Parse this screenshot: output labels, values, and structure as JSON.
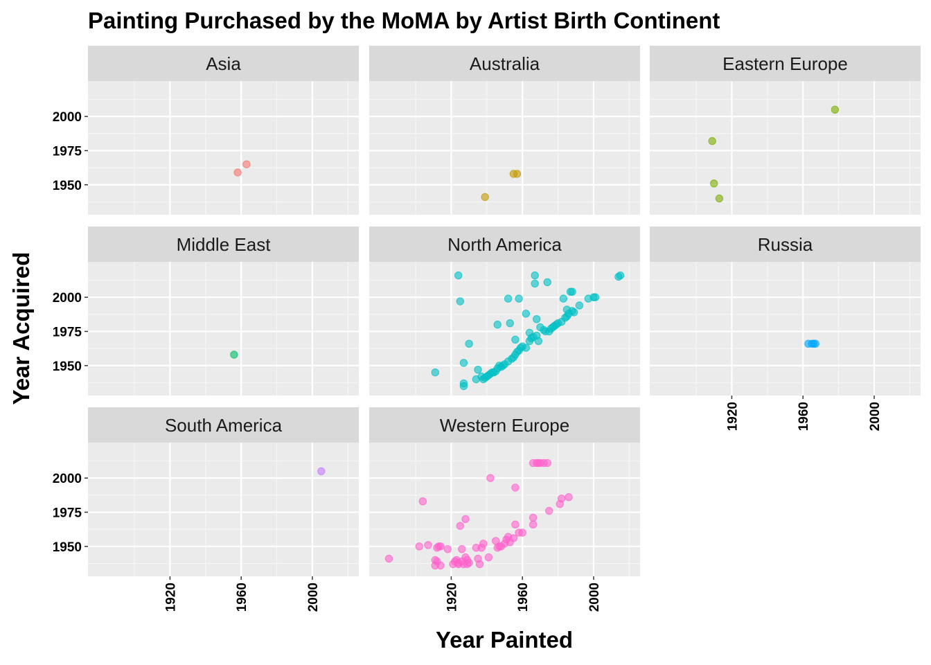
{
  "chart_data": {
    "type": "scatter",
    "title": "Painting Purchased by the MoMA by Artist Birth Continent",
    "xlabel": "Year Painted",
    "ylabel": "Year Acquired",
    "xlim": [
      1880,
      2020
    ],
    "ylim": [
      1932,
      2022
    ],
    "x_ticks": [
      1920,
      1960,
      2000
    ],
    "y_ticks": [
      1950,
      1975,
      2000
    ],
    "grid": true,
    "facet_layout": "3x3 wrap",
    "legend": "none",
    "panels": [
      {
        "name": "Asia",
        "color": "#F8766D",
        "points": [
          [
            1958,
            1959
          ],
          [
            1963,
            1965
          ]
        ]
      },
      {
        "name": "Australia",
        "color": "#C49A00",
        "points": [
          [
            1939,
            1941
          ],
          [
            1955,
            1958
          ],
          [
            1957,
            1958
          ]
        ]
      },
      {
        "name": "Eastern Europe",
        "color": "#7CAE00",
        "points": [
          [
            1909,
            1982
          ],
          [
            1910,
            1951
          ],
          [
            1913,
            1940
          ],
          [
            1978,
            2005
          ]
        ]
      },
      {
        "name": "Middle East",
        "color": "#00BE67",
        "points": [
          [
            1956,
            1958
          ]
        ]
      },
      {
        "name": "North America",
        "color": "#00BFC4",
        "points": [
          [
            1911,
            1945
          ],
          [
            1924,
            2016
          ],
          [
            1925,
            1997
          ],
          [
            1927,
            1952
          ],
          [
            1927,
            1937
          ],
          [
            1927,
            1935
          ],
          [
            1930,
            1966
          ],
          [
            1934,
            1940
          ],
          [
            1935,
            1947
          ],
          [
            1937,
            1942
          ],
          [
            1938,
            1940
          ],
          [
            1939,
            1941
          ],
          [
            1940,
            1942
          ],
          [
            1941,
            1943
          ],
          [
            1942,
            1944
          ],
          [
            1943,
            1945
          ],
          [
            1944,
            1945
          ],
          [
            1945,
            1946
          ],
          [
            1946,
            1980
          ],
          [
            1946,
            1948
          ],
          [
            1947,
            1950
          ],
          [
            1948,
            1949
          ],
          [
            1949,
            1950
          ],
          [
            1950,
            1951
          ],
          [
            1952,
            1999
          ],
          [
            1952,
            1953
          ],
          [
            1953,
            1981
          ],
          [
            1954,
            1955
          ],
          [
            1955,
            1956
          ],
          [
            1956,
            1969
          ],
          [
            1956,
            1958
          ],
          [
            1957,
            1960
          ],
          [
            1958,
            1999
          ],
          [
            1958,
            1961
          ],
          [
            1959,
            1963
          ],
          [
            1960,
            1964
          ],
          [
            1962,
            1988
          ],
          [
            1962,
            1963
          ],
          [
            1964,
            1974
          ],
          [
            1964,
            1968
          ],
          [
            1965,
            1970
          ],
          [
            1966,
            1971
          ],
          [
            1967,
            2016
          ],
          [
            1967,
            2010
          ],
          [
            1968,
            1984
          ],
          [
            1968,
            1972
          ],
          [
            1969,
            1968
          ],
          [
            1970,
            1978
          ],
          [
            1972,
            1976
          ],
          [
            1973,
            1975
          ],
          [
            1974,
            2011
          ],
          [
            1975,
            1975
          ],
          [
            1976,
            1977
          ],
          [
            1977,
            1978
          ],
          [
            1978,
            1979
          ],
          [
            1979,
            1980
          ],
          [
            1980,
            1981
          ],
          [
            1982,
            1982
          ],
          [
            1983,
            1999
          ],
          [
            1984,
            1985
          ],
          [
            1985,
            1991
          ],
          [
            1985,
            1986
          ],
          [
            1986,
            1988
          ],
          [
            1987,
            2004
          ],
          [
            1988,
            2004
          ],
          [
            1988,
            1990
          ],
          [
            1989,
            1989
          ],
          [
            1992,
            1994
          ],
          [
            1997,
            1999
          ],
          [
            2000,
            2000
          ],
          [
            2001,
            2000
          ],
          [
            2014,
            2015
          ],
          [
            2015,
            2016
          ]
        ]
      },
      {
        "name": "Russia",
        "color": "#00A9FF",
        "points": [
          [
            1963,
            1966
          ],
          [
            1965,
            1966
          ],
          [
            1966,
            1966
          ],
          [
            1967,
            1966
          ]
        ]
      },
      {
        "name": "South America",
        "color": "#C77CFF",
        "points": [
          [
            2005,
            2005
          ]
        ]
      },
      {
        "name": "Western Europe",
        "color": "#FF61CC",
        "points": [
          [
            1885,
            1941
          ],
          [
            1902,
            1950
          ],
          [
            1904,
            1983
          ],
          [
            1907,
            1951
          ],
          [
            1911,
            1940
          ],
          [
            1911,
            1936
          ],
          [
            1912,
            1949
          ],
          [
            1912,
            1939
          ],
          [
            1913,
            1950
          ],
          [
            1914,
            1936
          ],
          [
            1914,
            1950
          ],
          [
            1918,
            1948
          ],
          [
            1921,
            1937
          ],
          [
            1922,
            1939
          ],
          [
            1923,
            1940
          ],
          [
            1924,
            1938
          ],
          [
            1924,
            1937
          ],
          [
            1925,
            1965
          ],
          [
            1926,
            1948
          ],
          [
            1926,
            1939
          ],
          [
            1927,
            1937
          ],
          [
            1928,
            1970
          ],
          [
            1928,
            1942
          ],
          [
            1929,
            1937
          ],
          [
            1929,
            1940
          ],
          [
            1930,
            1938
          ],
          [
            1934,
            1949
          ],
          [
            1935,
            1941
          ],
          [
            1936,
            1937
          ],
          [
            1937,
            1949
          ],
          [
            1938,
            1952
          ],
          [
            1941,
            1942
          ],
          [
            1942,
            2000
          ],
          [
            1945,
            1954
          ],
          [
            1946,
            1949
          ],
          [
            1947,
            1950
          ],
          [
            1948,
            1950
          ],
          [
            1950,
            1952
          ],
          [
            1951,
            1955
          ],
          [
            1952,
            1957
          ],
          [
            1953,
            1953
          ],
          [
            1955,
            1956
          ],
          [
            1956,
            1993
          ],
          [
            1956,
            1966
          ],
          [
            1958,
            1960
          ],
          [
            1960,
            1960
          ],
          [
            1966,
            1971
          ],
          [
            1966,
            1966
          ],
          [
            1966,
            2011
          ],
          [
            1968,
            2011
          ],
          [
            1969,
            2011
          ],
          [
            1970,
            2011
          ],
          [
            1972,
            2011
          ],
          [
            1974,
            2011
          ],
          [
            1975,
            1976
          ],
          [
            1981,
            1981
          ],
          [
            1982,
            1985
          ],
          [
            1986,
            1986
          ]
        ]
      }
    ]
  }
}
